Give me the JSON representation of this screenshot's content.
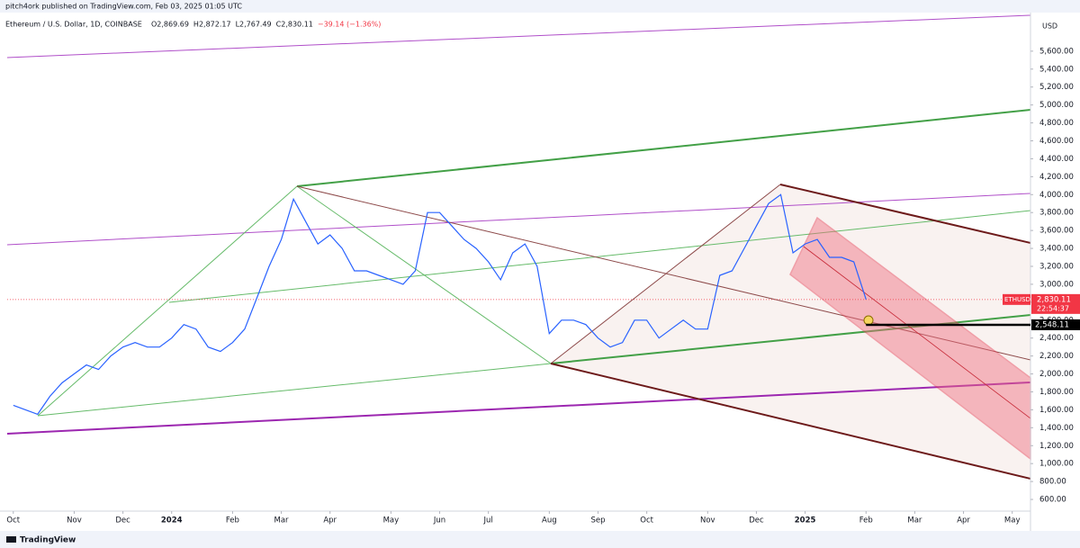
{
  "header": {
    "publisher": "pitch4ork published on TradingView.com, Feb 03, 2025 01:05 UTC",
    "brand": "TradingView"
  },
  "chart_data": {
    "type": "line",
    "title": "Ethereum / U.S. Dollar, 1D, COINBASE",
    "quote": [
      "O2,869.69",
      "H2,872.17",
      "L2,767.49",
      "C2,830.11",
      "−39.14 (−1.36%)"
    ],
    "currency": "USD",
    "symbol": "ETHUSD",
    "last_price": {
      "value": 2830.11,
      "label": "2,830.11"
    },
    "countdown": "22:54:37",
    "level": {
      "value": 2548.11,
      "label": "2,548.11"
    },
    "categories": [
      "Oct",
      null,
      null,
      null,
      null,
      "Nov",
      null,
      null,
      null,
      "Dec",
      null,
      null,
      null,
      "2024",
      null,
      null,
      null,
      null,
      "Feb",
      null,
      null,
      null,
      "Mar",
      null,
      null,
      null,
      "Apr",
      null,
      null,
      null,
      null,
      "May",
      null,
      null,
      null,
      "Jun",
      null,
      null,
      null,
      "Jul",
      null,
      null,
      null,
      null,
      "Aug",
      null,
      null,
      null,
      "Sep",
      null,
      null,
      null,
      "Oct",
      null,
      null,
      null,
      null,
      "Nov",
      null,
      null,
      null,
      "Dec",
      null,
      null,
      null,
      "2025",
      null,
      null,
      null,
      null,
      "Feb",
      null,
      null,
      null,
      "Mar",
      null,
      null,
      null,
      "Apr",
      null,
      null,
      null,
      "May",
      null
    ],
    "series": [
      {
        "name": "ETHUSD",
        "color": "#2962ff",
        "values": [
          1650,
          1600,
          1550,
          1750,
          1900,
          2000,
          2100,
          2050,
          2200,
          2300,
          2350,
          2300,
          2300,
          2400,
          2550,
          2500,
          2300,
          2250,
          2350,
          2500,
          2850,
          3200,
          3500,
          3950,
          3700,
          3450,
          3550,
          3400,
          3150,
          3150,
          3100,
          3050,
          3000,
          3150,
          3800,
          3800,
          3650,
          3500,
          3400,
          3250,
          3050,
          3350,
          3450,
          3200,
          2450,
          2600,
          2600,
          2550,
          2400,
          2300,
          2350,
          2600,
          2600,
          2400,
          2500,
          2600,
          2500,
          2500,
          3100,
          3150,
          3400,
          3650,
          3900,
          4000,
          3350,
          3450,
          3500,
          3300,
          3300,
          3250,
          2830.11,
          null,
          null,
          null,
          null,
          null,
          null,
          null,
          null,
          null,
          null,
          null,
          null,
          null
        ]
      }
    ],
    "ylim": [
      500,
      5970
    ],
    "yticks": [
      {
        "value": 600,
        "label": "600.00"
      },
      {
        "value": 800,
        "label": "800.00"
      },
      {
        "value": 1000,
        "label": "1,000.00"
      },
      {
        "value": 1200,
        "label": "1,200.00"
      },
      {
        "value": 1400,
        "label": "1,400.00"
      },
      {
        "value": 1600,
        "label": "1,600.00"
      },
      {
        "value": 1800,
        "label": "1,800.00"
      },
      {
        "value": 2000,
        "label": "2,000.00"
      },
      {
        "value": 2200,
        "label": "2,200.00"
      },
      {
        "value": 2400,
        "label": "2,400.00"
      },
      {
        "value": 2600,
        "label": "2,600.00"
      },
      {
        "value": 2800,
        "label": "2,800.00"
      },
      {
        "value": 3000,
        "label": "3,000.00"
      },
      {
        "value": 3200,
        "label": "3,200.00"
      },
      {
        "value": 3400,
        "label": "3,400.00"
      },
      {
        "value": 3600,
        "label": "3,600.00"
      },
      {
        "value": 3800,
        "label": "3,800.00"
      },
      {
        "value": 4000,
        "label": "4,000.00"
      },
      {
        "value": 4200,
        "label": "4,200.00"
      },
      {
        "value": 4400,
        "label": "4,400.00"
      },
      {
        "value": 4600,
        "label": "4,600.00"
      },
      {
        "value": 4800,
        "label": "4,800.00"
      },
      {
        "value": 5000,
        "label": "5,000.00"
      },
      {
        "value": 5200,
        "label": "5,200.00"
      },
      {
        "value": 5400,
        "label": "5,400.00"
      },
      {
        "value": 5600,
        "label": "5,600.00"
      }
    ],
    "grid": false
  }
}
